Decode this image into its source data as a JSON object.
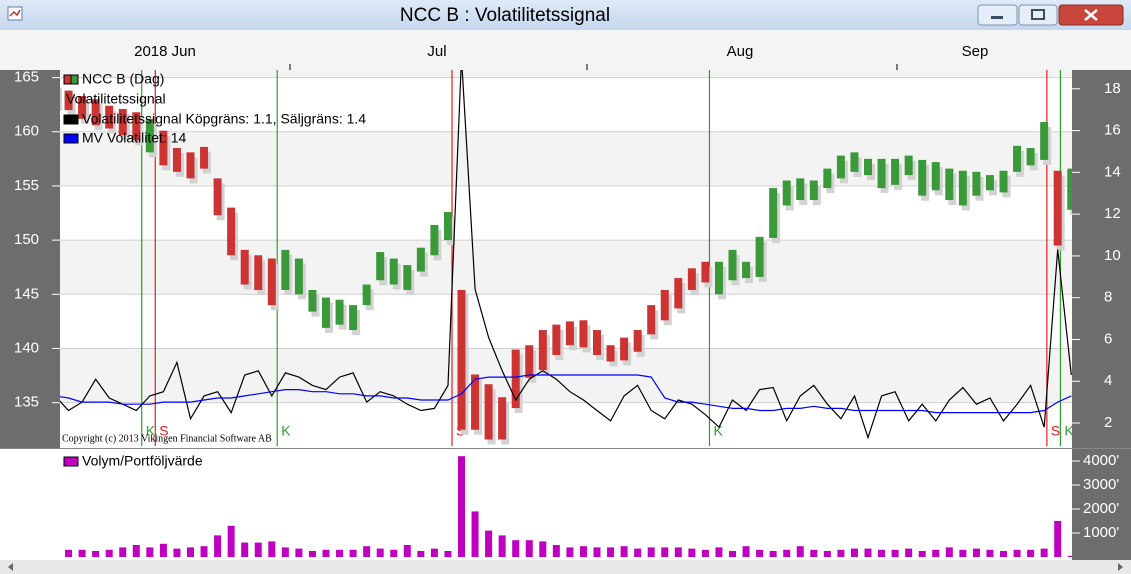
{
  "window_title": "NCC B : Volatilitetssignal",
  "months": [
    "2018 Jun",
    "Jul",
    "Aug",
    "Sep"
  ],
  "chart_data": [
    {
      "type": "range-bar",
      "indicator_title": "Volatilitetssignal",
      "copyright": "Copyright (c) 2013 Vikingen Financial Software AB",
      "price": {
        "name": "NCC B (Dag)",
        "buy_color": "#3a9a3a",
        "sell_color": "#cc3333",
        "high": [
          164.5,
          163.8,
          163.3,
          163,
          162.4,
          162.1,
          161.8,
          161.2,
          160.1,
          158.5,
          158.1,
          158.6,
          155.7,
          153,
          149.1,
          148.6,
          148.3,
          149.1,
          148.3,
          145.4,
          144.7,
          144.5,
          144,
          145.9,
          148.9,
          148.3,
          147.7,
          149.3,
          151.4,
          152.6,
          145.4,
          137.6,
          136.7,
          135.5,
          139.9,
          140.3,
          141.7,
          142.2,
          142.5,
          142.6,
          141.7,
          140.3,
          141,
          141.7,
          144,
          145.4,
          146.5,
          147.4,
          148,
          148,
          149.1,
          148,
          150.3,
          154.8,
          155.5,
          155.7,
          155.5,
          156.6,
          157.8,
          158.1,
          157.5,
          157.5,
          157.5,
          157.8,
          157.4,
          157.2,
          156.6,
          156.4,
          156.3,
          156,
          156.4,
          158.7,
          158.5,
          160.9,
          156.4,
          156.6
        ],
        "low": [
          162.4,
          162,
          161.2,
          160.6,
          160.3,
          159.7,
          159.2,
          158.1,
          156.9,
          156.3,
          155.7,
          156.6,
          152.3,
          148.6,
          145.9,
          145.4,
          144,
          145.4,
          145,
          143.4,
          141.9,
          142.2,
          141.7,
          144,
          146.3,
          145.9,
          145.4,
          147.1,
          148.6,
          150,
          132.5,
          132.5,
          131.6,
          131.6,
          134.5,
          137.3,
          138,
          139.4,
          140.3,
          140.1,
          139.4,
          138.8,
          138.9,
          139.7,
          141.3,
          142.6,
          143.7,
          145.4,
          146.1,
          145,
          146.3,
          146.5,
          146.6,
          150.2,
          153.2,
          153.7,
          153.7,
          154.8,
          155.7,
          156.3,
          156,
          154.8,
          155.1,
          156,
          154.1,
          154.6,
          153.7,
          153.2,
          154.1,
          154.6,
          154.4,
          156.3,
          156.9,
          157.4,
          149.5,
          152.8
        ]
      },
      "series": [
        {
          "name": "Volatilitetssignal Köpgräns: 1.1, Säljgräns: 1.4",
          "color": "#000000",
          "axis": "y2",
          "values": [
            3.3,
            2.6,
            3.0,
            4.1,
            3.2,
            2.9,
            2.6,
            3.3,
            3.5,
            4.9,
            2.2,
            3.3,
            3.5,
            2.5,
            4.3,
            4.5,
            3.3,
            4.4,
            4.2,
            3.8,
            3.6,
            4.2,
            4.4,
            3.0,
            3.5,
            3.3,
            2.9,
            2.6,
            2.7,
            3.8,
            19.5,
            8.4,
            6.1,
            4.5,
            3.1,
            4.1,
            4.5,
            4.1,
            3.5,
            3.1,
            2.6,
            2.1,
            3.3,
            3.8,
            2.6,
            2.2,
            3.1,
            2.9,
            2.4,
            1.8,
            3.1,
            2.6,
            3.6,
            3.7,
            2.1,
            3.3,
            3.8,
            2.9,
            2.2,
            3.3,
            1.3,
            3.3,
            3.5,
            2.1,
            2.9,
            2.1,
            3.1,
            3.7,
            2.9,
            3.2,
            2.1,
            2.9,
            3.8,
            1.8,
            10.3,
            4.3
          ]
        },
        {
          "name": "MV Volatilitet: 14",
          "color": "#0000ff",
          "axis": "y2",
          "values": [
            3.3,
            3.2,
            3.0,
            3.0,
            3.0,
            2.9,
            2.9,
            2.9,
            3.0,
            3.0,
            3.0,
            3.1,
            3.2,
            3.2,
            3.3,
            3.4,
            3.5,
            3.6,
            3.6,
            3.5,
            3.5,
            3.4,
            3.4,
            3.3,
            3.3,
            3.2,
            3.2,
            3.1,
            3.1,
            3.1,
            3.4,
            4.1,
            4.2,
            4.2,
            4.2,
            4.3,
            4.3,
            4.3,
            4.3,
            4.3,
            4.3,
            4.3,
            4.3,
            4.3,
            4.2,
            3.2,
            3.0,
            3.0,
            2.9,
            2.8,
            2.7,
            2.7,
            2.6,
            2.6,
            2.7,
            2.7,
            2.8,
            2.7,
            2.7,
            2.6,
            2.6,
            2.6,
            2.6,
            2.6,
            2.6,
            2.5,
            2.5,
            2.5,
            2.5,
            2.5,
            2.5,
            2.5,
            2.5,
            2.6,
            3.0,
            3.3
          ]
        }
      ],
      "signals": [
        {
          "label": "K",
          "x": 6.4,
          "color": "#2ca02c"
        },
        {
          "label": "S",
          "x": 7.4,
          "color": "#e02020"
        },
        {
          "label": "K",
          "x": 16.4,
          "color": "#2ca02c"
        },
        {
          "label": "S",
          "x": 29.3,
          "color": "#e02020"
        },
        {
          "label": "K",
          "x": 48.3,
          "color": "#2ca02c"
        },
        {
          "label": "S",
          "x": 73.2,
          "color": "#e02020"
        },
        {
          "label": "K",
          "x": 74.2,
          "color": "#2ca02c"
        }
      ],
      "ylim": [
        131,
        165.7
      ],
      "yticks": [
        135,
        140,
        145,
        150,
        155,
        160,
        165
      ],
      "y2lim": [
        0.9,
        18.9
      ],
      "y2ticks": [
        2,
        4,
        6,
        8,
        10,
        12,
        14,
        16,
        18
      ],
      "grid": true
    },
    {
      "type": "bar",
      "series": [
        {
          "name": "Volym/Portföljvärde",
          "color": "#c000c0",
          "values": [
            350,
            300,
            300,
            250,
            300,
            400,
            500,
            400,
            550,
            350,
            400,
            450,
            900,
            1300,
            600,
            600,
            650,
            400,
            350,
            250,
            300,
            300,
            300,
            450,
            350,
            300,
            500,
            250,
            350,
            250,
            4200,
            1900,
            1100,
            900,
            700,
            700,
            650,
            500,
            400,
            450,
            400,
            400,
            450,
            350,
            400,
            400,
            400,
            350,
            300,
            400,
            250,
            450,
            300,
            250,
            300,
            450,
            300,
            250,
            300,
            350,
            350,
            300,
            300,
            350,
            250,
            300,
            400,
            300,
            350,
            300,
            250,
            300,
            300,
            350,
            1500,
            50
          ]
        }
      ],
      "ylim": [
        0,
        4375
      ],
      "yticks": [
        {
          "value": 1000,
          "label": "1000'"
        },
        {
          "value": 2000,
          "label": "2000'"
        },
        {
          "value": 3000,
          "label": "3000'"
        },
        {
          "value": 4000,
          "label": "4000'"
        }
      ]
    }
  ]
}
